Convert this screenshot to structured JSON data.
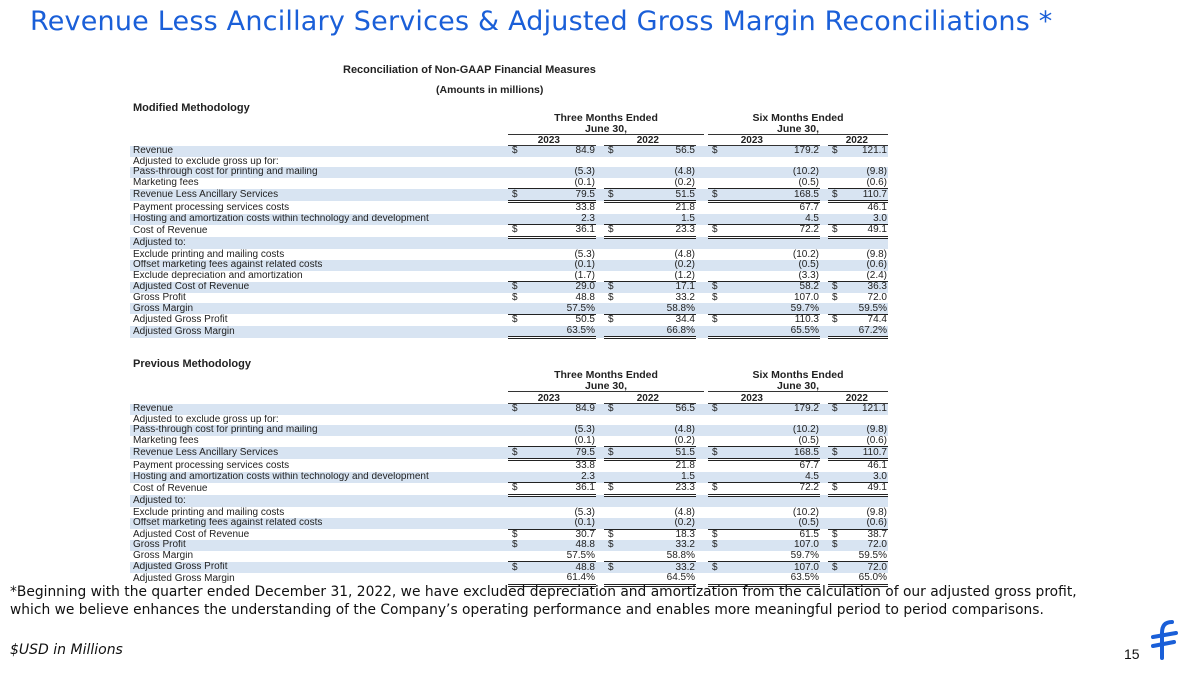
{
  "slide": {
    "title": "Revenue Less Ancillary Services & Adjusted Gross Margin Reconciliations *",
    "footnote": "*Beginning with the quarter ended December 31, 2022, we have excluded depreciation and amortization from the calculation of our adjusted gross profit, which we believe enhances the understanding of the Company’s operating performance and enables more meaningful period to period comparisons.",
    "units": "$USD in Millions",
    "page_number": "15",
    "logo_icon": "flywire-logo-icon",
    "brand_color": "#1a5fd8"
  },
  "report": {
    "title": "Reconciliation of Non-GAAP Financial Measures",
    "subtitle": "(Amounts in millions)",
    "period_headers": {
      "three_months": "Three Months Ended\nJune 30,",
      "six_months": "Six Months Ended\nJune 30,"
    },
    "years": [
      "2023",
      "2022",
      "2023",
      "2022"
    ]
  },
  "modified": {
    "heading": "Modified Methodology",
    "rows": [
      {
        "label": "Revenue",
        "cur": [
          "$",
          "$",
          "$",
          "$"
        ],
        "v": [
          "84.9",
          "56.5",
          "179.2",
          "121.1"
        ],
        "line": ""
      },
      {
        "label": "Adjusted to exclude gross up for:",
        "cur": [
          "",
          "",
          "",
          ""
        ],
        "v": [
          "",
          "",
          "",
          ""
        ],
        "line": ""
      },
      {
        "label": "Pass-through cost for printing and mailing",
        "cur": [
          "",
          "",
          "",
          ""
        ],
        "v": [
          "(5.3)",
          "(4.8)",
          "(10.2)",
          "(9.8)"
        ],
        "line": ""
      },
      {
        "label": "Marketing fees",
        "cur": [
          "",
          "",
          "",
          ""
        ],
        "v": [
          "(0.1)",
          "(0.2)",
          "(0.5)",
          "(0.6)"
        ],
        "line": "ul"
      },
      {
        "label": "Revenue Less Ancillary Services",
        "cur": [
          "$",
          "$",
          "$",
          "$"
        ],
        "v": [
          "79.5",
          "51.5",
          "168.5",
          "110.7"
        ],
        "line": "dul"
      },
      {
        "label": "Payment processing services costs",
        "cur": [
          "",
          "",
          "",
          ""
        ],
        "v": [
          "33.8",
          "21.8",
          "67.7",
          "46.1"
        ],
        "line": ""
      },
      {
        "label": "Hosting and amortization costs within technology and development",
        "cur": [
          "",
          "",
          "",
          ""
        ],
        "v": [
          "2.3",
          "1.5",
          "4.5",
          "3.0"
        ],
        "line": "ul"
      },
      {
        "label": "Cost of Revenue",
        "cur": [
          "$",
          "$",
          "$",
          "$"
        ],
        "v": [
          "36.1",
          "23.3",
          "72.2",
          "49.1"
        ],
        "line": "dul"
      },
      {
        "label": "Adjusted to:",
        "cur": [
          "",
          "",
          "",
          ""
        ],
        "v": [
          "",
          "",
          "",
          ""
        ],
        "line": ""
      },
      {
        "label": "Exclude printing and mailing costs",
        "cur": [
          "",
          "",
          "",
          ""
        ],
        "v": [
          "(5.3)",
          "(4.8)",
          "(10.2)",
          "(9.8)"
        ],
        "line": ""
      },
      {
        "label": "Offset marketing fees against related costs",
        "cur": [
          "",
          "",
          "",
          ""
        ],
        "v": [
          "(0.1)",
          "(0.2)",
          "(0.5)",
          "(0.6)"
        ],
        "line": ""
      },
      {
        "label": "Exclude depreciation and amortization",
        "cur": [
          "",
          "",
          "",
          ""
        ],
        "v": [
          "(1.7)",
          "(1.2)",
          "(3.3)",
          "(2.4)"
        ],
        "line": "ul"
      },
      {
        "label": "Adjusted Cost of Revenue",
        "cur": [
          "$",
          "$",
          "$",
          "$"
        ],
        "v": [
          "29.0",
          "17.1",
          "58.2",
          "36.3"
        ],
        "line": ""
      },
      {
        "label": "Gross Profit",
        "cur": [
          "$",
          "$",
          "$",
          "$"
        ],
        "v": [
          "48.8",
          "33.2",
          "107.0",
          "72.0"
        ],
        "line": ""
      },
      {
        "label": "Gross Margin",
        "cur": [
          "",
          "",
          "",
          ""
        ],
        "v": [
          "57.5%",
          "58.8%",
          "59.7%",
          "59.5%"
        ],
        "line": "ul"
      },
      {
        "label": "Adjusted Gross Profit",
        "cur": [
          "$",
          "$",
          "$",
          "$"
        ],
        "v": [
          "50.5",
          "34.4",
          "110.3",
          "74.4"
        ],
        "line": ""
      },
      {
        "label": "Adjusted Gross Margin",
        "cur": [
          "",
          "",
          "",
          ""
        ],
        "v": [
          "63.5%",
          "66.8%",
          "65.5%",
          "67.2%"
        ],
        "line": "dul"
      }
    ]
  },
  "previous": {
    "heading": "Previous Methodology",
    "rows": [
      {
        "label": "Revenue",
        "cur": [
          "$",
          "$",
          "$",
          "$"
        ],
        "v": [
          "84.9",
          "56.5",
          "179.2",
          "121.1"
        ],
        "line": ""
      },
      {
        "label": "Adjusted to exclude gross up for:",
        "cur": [
          "",
          "",
          "",
          ""
        ],
        "v": [
          "",
          "",
          "",
          ""
        ],
        "line": ""
      },
      {
        "label": "Pass-through cost for printing and mailing",
        "cur": [
          "",
          "",
          "",
          ""
        ],
        "v": [
          "(5.3)",
          "(4.8)",
          "(10.2)",
          "(9.8)"
        ],
        "line": ""
      },
      {
        "label": "Marketing fees",
        "cur": [
          "",
          "",
          "",
          ""
        ],
        "v": [
          "(0.1)",
          "(0.2)",
          "(0.5)",
          "(0.6)"
        ],
        "line": "ul"
      },
      {
        "label": "Revenue Less Ancillary Services",
        "cur": [
          "$",
          "$",
          "$",
          "$"
        ],
        "v": [
          "79.5",
          "51.5",
          "168.5",
          "110.7"
        ],
        "line": "dul"
      },
      {
        "label": "Payment processing services costs",
        "cur": [
          "",
          "",
          "",
          ""
        ],
        "v": [
          "33.8",
          "21.8",
          "67.7",
          "46.1"
        ],
        "line": ""
      },
      {
        "label": "Hosting and amortization costs within technology and development",
        "cur": [
          "",
          "",
          "",
          ""
        ],
        "v": [
          "2.3",
          "1.5",
          "4.5",
          "3.0"
        ],
        "line": "ul"
      },
      {
        "label": "Cost of Revenue",
        "cur": [
          "$",
          "$",
          "$",
          "$"
        ],
        "v": [
          "36.1",
          "23.3",
          "72.2",
          "49.1"
        ],
        "line": "dul"
      },
      {
        "label": "Adjusted to:",
        "cur": [
          "",
          "",
          "",
          ""
        ],
        "v": [
          "",
          "",
          "",
          ""
        ],
        "line": ""
      },
      {
        "label": "Exclude printing and mailing costs",
        "cur": [
          "",
          "",
          "",
          ""
        ],
        "v": [
          "(5.3)",
          "(4.8)",
          "(10.2)",
          "(9.8)"
        ],
        "line": ""
      },
      {
        "label": "Offset marketing fees against related costs",
        "cur": [
          "",
          "",
          "",
          ""
        ],
        "v": [
          "(0.1)",
          "(0.2)",
          "(0.5)",
          "(0.6)"
        ],
        "line": "ul"
      },
      {
        "label": "Adjusted Cost of Revenue",
        "cur": [
          "$",
          "$",
          "$",
          "$"
        ],
        "v": [
          "30.7",
          "18.3",
          "61.5",
          "38.7"
        ],
        "line": ""
      },
      {
        "label": "Gross Profit",
        "cur": [
          "$",
          "$",
          "$",
          "$"
        ],
        "v": [
          "48.8",
          "33.2",
          "107.0",
          "72.0"
        ],
        "line": ""
      },
      {
        "label": "Gross Margin",
        "cur": [
          "",
          "",
          "",
          ""
        ],
        "v": [
          "57.5%",
          "58.8%",
          "59.7%",
          "59.5%"
        ],
        "line": "ul"
      },
      {
        "label": "Adjusted Gross Profit",
        "cur": [
          "$",
          "$",
          "$",
          "$"
        ],
        "v": [
          "48.8",
          "33.2",
          "107.0",
          "72.0"
        ],
        "line": ""
      },
      {
        "label": "Adjusted Gross Margin",
        "cur": [
          "",
          "",
          "",
          ""
        ],
        "v": [
          "61.4%",
          "64.5%",
          "63.5%",
          "65.0%"
        ],
        "line": "dul"
      }
    ]
  }
}
